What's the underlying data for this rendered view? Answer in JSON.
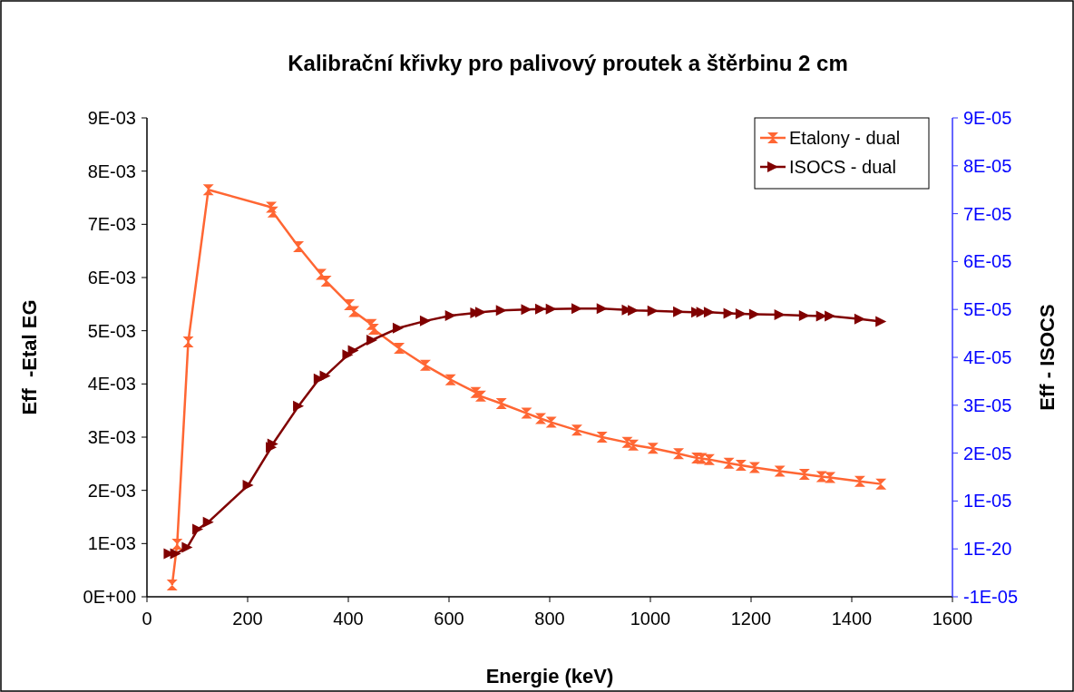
{
  "chart_data": {
    "type": "line",
    "title": "Kalibrační křivky pro palivový proutek a štěrbinu 2 cm",
    "xlabel": "Energie (keV)",
    "ylabel": "Eff  -Etal EG",
    "y2label": "Eff - ISOCS",
    "xlim": [
      0,
      1600
    ],
    "xticks": [
      0,
      200,
      400,
      600,
      800,
      1000,
      1200,
      1400,
      1600
    ],
    "ylim": [
      0,
      0.009
    ],
    "yticks": [
      {
        "value": 0,
        "label": "0E+00"
      },
      {
        "value": 0.001,
        "label": "1E-03"
      },
      {
        "value": 0.002,
        "label": "2E-03"
      },
      {
        "value": 0.003,
        "label": "3E-03"
      },
      {
        "value": 0.004,
        "label": "4E-03"
      },
      {
        "value": 0.005,
        "label": "5E-03"
      },
      {
        "value": 0.006,
        "label": "6E-03"
      },
      {
        "value": 0.007,
        "label": "7E-03"
      },
      {
        "value": 0.008,
        "label": "8E-03"
      },
      {
        "value": 0.009,
        "label": "9E-03"
      }
    ],
    "y2lim": [
      -1e-05,
      9e-05
    ],
    "y2ticks": [
      {
        "value": -1e-05,
        "label": "-1E-05"
      },
      {
        "value": 0,
        "label": "1E-20"
      },
      {
        "value": 1e-05,
        "label": "1E-05"
      },
      {
        "value": 2e-05,
        "label": "2E-05"
      },
      {
        "value": 3e-05,
        "label": "3E-05"
      },
      {
        "value": 4e-05,
        "label": "4E-05"
      },
      {
        "value": 5e-05,
        "label": "5E-05"
      },
      {
        "value": 6e-05,
        "label": "6E-05"
      },
      {
        "value": 7e-05,
        "label": "7E-05"
      },
      {
        "value": 8e-05,
        "label": "8E-05"
      },
      {
        "value": 9e-05,
        "label": "9E-05"
      }
    ],
    "legend": "top right",
    "grid": false,
    "line_style": "solid",
    "series": [
      {
        "name": "Etalony - dual",
        "color": "#ff6633",
        "marker": "cross",
        "x": [
          50,
          60,
          82,
          122,
          247,
          250,
          301,
          346,
          356,
          402,
          411,
          446,
          450,
          501,
          553,
          603,
          653,
          663,
          704,
          754,
          782,
          803,
          854,
          904,
          954,
          966,
          1005,
          1056,
          1092,
          1102,
          1117,
          1156,
          1180,
          1207,
          1257,
          1306,
          1340,
          1357,
          1416,
          1458
        ],
        "values": [
          0.00022,
          0.00099,
          0.00479,
          0.00765,
          0.00732,
          0.00723,
          0.00658,
          0.00606,
          0.00593,
          0.00549,
          0.00536,
          0.00512,
          0.00503,
          0.00467,
          0.00435,
          0.00408,
          0.00384,
          0.00377,
          0.00363,
          0.00345,
          0.00335,
          0.00328,
          0.00313,
          0.003,
          0.0029,
          0.00285,
          0.00279,
          0.00269,
          0.00261,
          0.0026,
          0.00258,
          0.00251,
          0.00247,
          0.00243,
          0.00236,
          0.0023,
          0.00226,
          0.00224,
          0.00217,
          0.00212
        ]
      },
      {
        "name": "ISOCS - dual",
        "color": "#800000",
        "marker": "triangle",
        "axis": "y2",
        "x": [
          44,
          57,
          80,
          101,
          122,
          201,
          247,
          250,
          301,
          342,
          354,
          399,
          410,
          447,
          499,
          553,
          603,
          653,
          663,
          704,
          754,
          782,
          803,
          854,
          904,
          954,
          966,
          1005,
          1056,
          1092,
          1102,
          1117,
          1156,
          1180,
          1207,
          1257,
          1306,
          1340,
          1357,
          1416,
          1458
        ],
        "values": [
          -1e-06,
          -1e-06,
          3e-07,
          4.1e-06,
          5.6e-06,
          1.33e-05,
          2.12e-05,
          2.19e-05,
          2.98e-05,
          3.55e-05,
          3.61e-05,
          4.05e-05,
          4.14e-05,
          4.36e-05,
          4.61e-05,
          4.76e-05,
          4.87e-05,
          4.93e-05,
          4.94e-05,
          4.98e-05,
          5e-05,
          5.01e-05,
          5.01e-05,
          5.02e-05,
          5.02e-05,
          4.99e-05,
          4.98e-05,
          4.97e-05,
          4.95e-05,
          4.94e-05,
          4.94e-05,
          4.94e-05,
          4.92e-05,
          4.91e-05,
          4.9e-05,
          4.89e-05,
          4.87e-05,
          4.86e-05,
          4.86e-05,
          4.8e-05,
          4.75e-05
        ]
      }
    ]
  }
}
